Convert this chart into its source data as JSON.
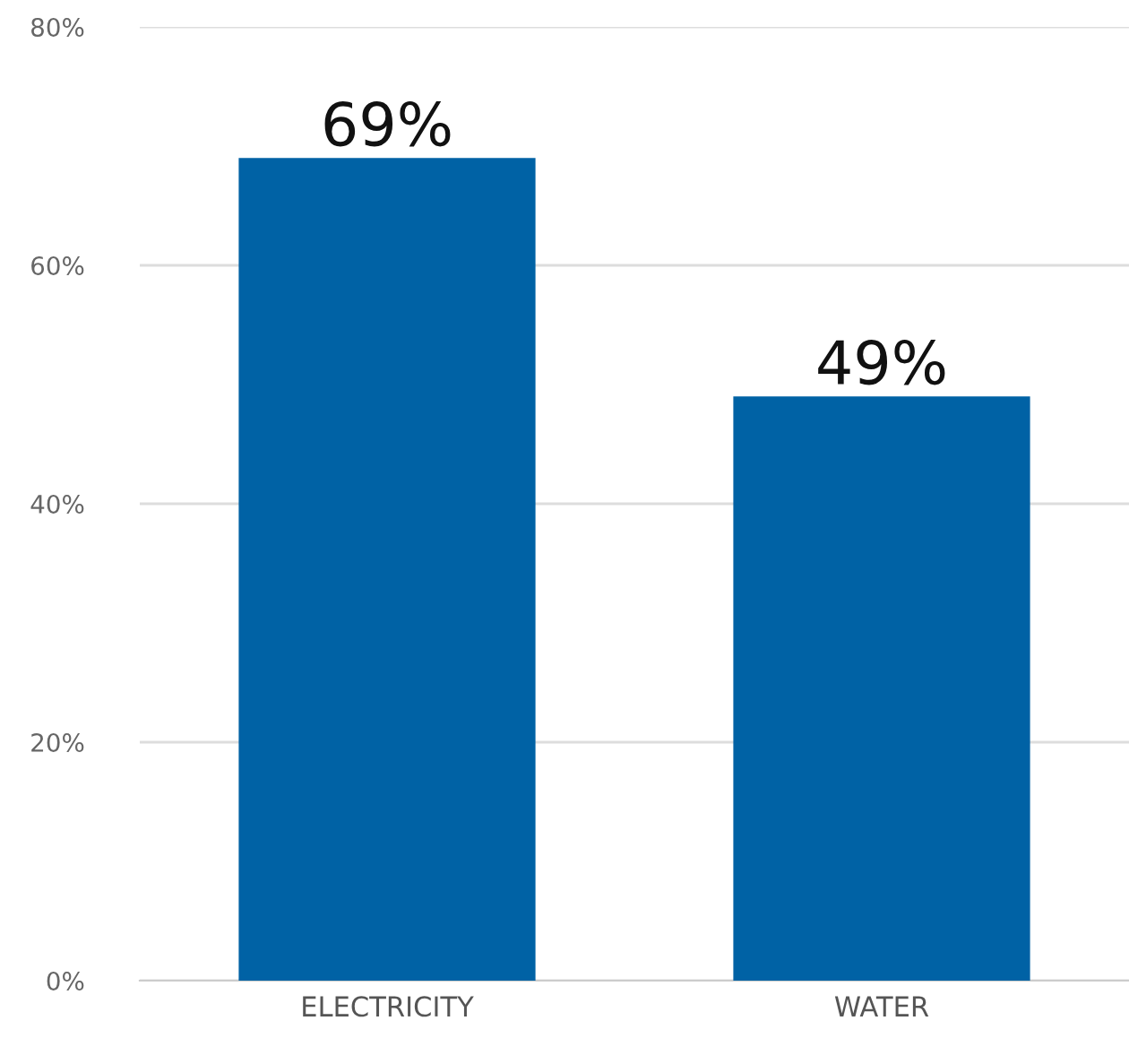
{
  "chart_data": {
    "type": "bar",
    "categories": [
      "ELECTRICITY",
      "WATER"
    ],
    "values": [
      69,
      49
    ],
    "value_labels": [
      "69%",
      "49%"
    ],
    "color": "#0062a5",
    "ylim": [
      0,
      80
    ],
    "yticks": [
      {
        "value": 0,
        "label": "0%"
      },
      {
        "value": 20,
        "label": "20%"
      },
      {
        "value": 40,
        "label": "40%"
      },
      {
        "value": 60,
        "label": "60%"
      },
      {
        "value": 80,
        "label": "80%"
      }
    ],
    "grid": "y",
    "legend": false
  }
}
